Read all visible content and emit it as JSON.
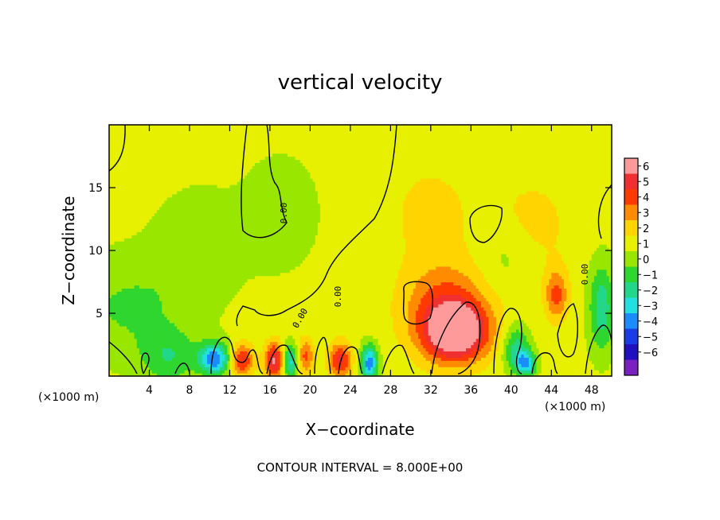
{
  "chart_data": {
    "type": "heatmap",
    "title": "vertical velocity",
    "xlabel": "X−coordinate",
    "ylabel": "Z−coordinate",
    "x_unit_left": "(×1000 m)",
    "x_unit_right": "(×1000 m)",
    "footer": "CONTOUR INTERVAL = 8.000E+00",
    "xlim": [
      0,
      50
    ],
    "ylim": [
      0,
      20
    ],
    "x_ticks": [
      4,
      8,
      12,
      16,
      20,
      24,
      28,
      32,
      36,
      40,
      44,
      48
    ],
    "y_ticks": [
      5,
      10,
      15
    ],
    "colorbar": {
      "levels": [
        6,
        5,
        4,
        3,
        2,
        1,
        0,
        "−1",
        "−2",
        "−3",
        "−4",
        "−5",
        "−6"
      ],
      "colors": [
        "#ff9a9a",
        "#f03030",
        "#ff3a00",
        "#ff8c00",
        "#ffd400",
        "#e6f000",
        "#99e600",
        "#2fd62f",
        "#22d68a",
        "#22e0e0",
        "#1a8cff",
        "#1a3ce6",
        "#2010c0",
        "#7a20c0"
      ]
    },
    "features": [
      {
        "type": "max",
        "x": 34.5,
        "z": 3.5,
        "value": 6,
        "sx": 2.2,
        "sz": 1.6
      },
      {
        "type": "max",
        "x": 33.5,
        "z": 5.5,
        "value": 3,
        "sx": 3.0,
        "sz": 2.5
      },
      {
        "type": "max",
        "x": 44.5,
        "z": 6.5,
        "value": 3,
        "sx": 0.8,
        "sz": 1.4
      },
      {
        "type": "max",
        "x": 13.2,
        "z": 1.3,
        "value": 4,
        "sx": 0.8,
        "sz": 0.9
      },
      {
        "type": "max",
        "x": 16.5,
        "z": 1.3,
        "value": 5,
        "sx": 0.7,
        "sz": 1.0
      },
      {
        "type": "max",
        "x": 19.5,
        "z": 1.6,
        "value": 3,
        "sx": 0.6,
        "sz": 1.0
      },
      {
        "type": "max",
        "x": 23.0,
        "z": 1.3,
        "value": 4,
        "sx": 0.8,
        "sz": 1.0
      },
      {
        "type": "min",
        "x": 10.5,
        "z": 1.4,
        "value": -5,
        "sx": 1.1,
        "sz": 0.9
      },
      {
        "type": "min",
        "x": 18.0,
        "z": 1.2,
        "value": -4,
        "sx": 0.6,
        "sz": 1.0
      },
      {
        "type": "min",
        "x": 25.9,
        "z": 1.1,
        "value": -5,
        "sx": 0.6,
        "sz": 1.0
      },
      {
        "type": "min",
        "x": 40.5,
        "z": 2.2,
        "value": -3,
        "sx": 0.9,
        "sz": 1.3
      },
      {
        "type": "min",
        "x": 41.5,
        "z": 1.0,
        "value": -4,
        "sx": 0.7,
        "sz": 0.7
      },
      {
        "type": "min",
        "x": 49.0,
        "z": 5.5,
        "value": -3,
        "sx": 0.9,
        "sz": 2.5
      },
      {
        "type": "min",
        "x": 6.0,
        "z": 1.5,
        "value": -2,
        "sx": 2.0,
        "sz": 1.5
      },
      {
        "type": "min",
        "x": 2.0,
        "z": 5.5,
        "value": -1.5,
        "sx": 4.5,
        "sz": 3.0
      },
      {
        "type": "min",
        "x": 9.0,
        "z": 10.5,
        "value": -1.2,
        "sx": 3.0,
        "sz": 3.0
      },
      {
        "type": "min",
        "x": 17.0,
        "z": 13.0,
        "value": -1.2,
        "sx": 2.5,
        "sz": 3.0
      },
      {
        "type": "min",
        "x": 39.5,
        "z": 9.5,
        "value": -1,
        "sx": 2.0,
        "sz": 2.0
      },
      {
        "type": "max",
        "x": 32.0,
        "z": 13.0,
        "value": 1,
        "sx": 3.0,
        "sz": 3.0
      },
      {
        "type": "max",
        "x": 42.0,
        "z": 12.0,
        "value": 1,
        "sx": 3.0,
        "sz": 3.0
      }
    ],
    "contour_label": "0.00"
  }
}
